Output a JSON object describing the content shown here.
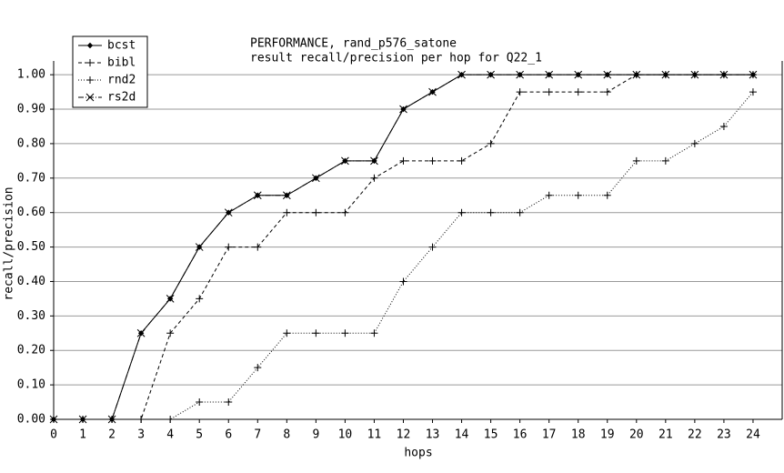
{
  "chart_data": {
    "type": "line",
    "title": "PERFORMANCE, rand_p576_satone",
    "subtitle": "result recall/precision per hop for Q22_1",
    "x_label": "hops",
    "y_label": "recall/precision",
    "x": [
      0,
      1,
      2,
      3,
      4,
      5,
      6,
      7,
      8,
      9,
      10,
      11,
      12,
      13,
      14,
      15,
      16,
      17,
      18,
      19,
      20,
      21,
      22,
      23,
      24
    ],
    "series": [
      {
        "name": "bcst",
        "color": "#000000",
        "dash": "none",
        "marker": "diamond",
        "values": [
          0,
          0,
          0,
          0.25,
          0.35,
          0.5,
          0.6,
          0.65,
          0.65,
          0.7,
          0.75,
          0.75,
          0.9,
          0.95,
          1,
          1,
          1,
          1,
          1,
          1,
          1,
          1,
          1,
          1,
          1
        ]
      },
      {
        "name": "bibl",
        "color": "#000000",
        "dash": "4,3",
        "marker": "plus",
        "values": [
          0,
          0,
          0,
          0,
          0.25,
          0.35,
          0.5,
          0.5,
          0.6,
          0.6,
          0.6,
          0.7,
          0.75,
          0.75,
          0.75,
          0.8,
          0.95,
          0.95,
          0.95,
          0.95,
          1,
          1,
          1,
          1,
          1
        ]
      },
      {
        "name": "rnd2",
        "color": "#000000",
        "dash": "1,2",
        "marker": "plus",
        "values": [
          0,
          0,
          0,
          0,
          0,
          0.05,
          0.05,
          0.15,
          0.25,
          0.25,
          0.25,
          0.25,
          0.4,
          0.5,
          0.6,
          0.6,
          0.6,
          0.65,
          0.65,
          0.65,
          0.75,
          0.75,
          0.8,
          0.85,
          0.95
        ]
      },
      {
        "name": "rs2d",
        "color": "#000000",
        "dash": "6,2,1,2",
        "marker": "cross",
        "values": [
          0,
          0,
          0,
          0.25,
          0.35,
          0.5,
          0.6,
          0.65,
          0.65,
          0.7,
          0.75,
          0.75,
          0.9,
          0.95,
          1,
          1,
          1,
          1,
          1,
          1,
          1,
          1,
          1,
          1,
          1
        ]
      }
    ],
    "xlim": [
      0,
      25
    ],
    "ylim": [
      0,
      1.04
    ],
    "xticks": [
      0,
      1,
      2,
      3,
      4,
      5,
      6,
      7,
      8,
      9,
      10,
      11,
      12,
      13,
      14,
      15,
      16,
      17,
      18,
      19,
      20,
      21,
      22,
      23,
      24
    ],
    "yticks": [
      {
        "value": 0,
        "label": "0.00"
      },
      {
        "value": 0.1,
        "label": "0.10"
      },
      {
        "value": 0.2,
        "label": "0.20"
      },
      {
        "value": 0.3,
        "label": "0.30"
      },
      {
        "value": 0.4,
        "label": "0.40"
      },
      {
        "value": 0.5,
        "label": "0.50"
      },
      {
        "value": 0.6,
        "label": "0.60"
      },
      {
        "value": 0.7,
        "label": "0.70"
      },
      {
        "value": 0.8,
        "label": "0.80"
      },
      {
        "value": 0.9,
        "label": "0.90"
      },
      {
        "value": 1,
        "label": "1.00"
      }
    ],
    "grid": true,
    "legend": "top-left"
  }
}
